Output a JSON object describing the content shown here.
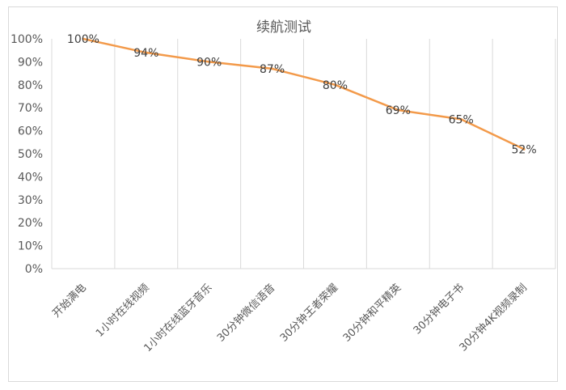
{
  "chart_data": {
    "type": "line",
    "title": "续航测试",
    "categories": [
      "开始满电",
      "1小时在线视频",
      "1小时在线蓝牙音乐",
      "30分钟微信语音",
      "30分钟王者荣耀",
      "30分钟和平精英",
      "30分钟电子书",
      "30分钟4K视频录制"
    ],
    "series": [
      {
        "values": [
          100,
          94,
          90,
          87,
          80,
          69,
          65,
          52
        ]
      }
    ],
    "data_labels": [
      "100%",
      "94%",
      "90%",
      "87%",
      "80%",
      "69%",
      "65%",
      "52%"
    ],
    "yticks": [
      "0%",
      "10%",
      "20%",
      "30%",
      "40%",
      "50%",
      "60%",
      "70%",
      "80%",
      "90%",
      "100%"
    ],
    "ylim": [
      0,
      100
    ],
    "xlabel": "",
    "ylabel": "",
    "grid": "vertical",
    "legend": "none",
    "colors": {
      "line": "#f39a4a",
      "grid": "#d9d9d9",
      "text": "#595959",
      "label": "#404040"
    }
  }
}
